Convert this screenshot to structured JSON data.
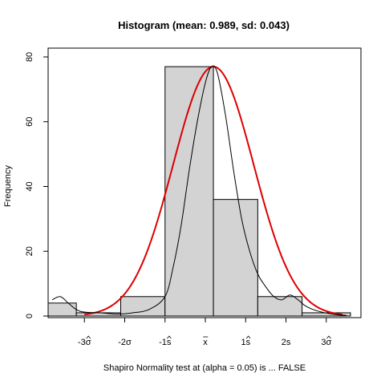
{
  "chart_data": {
    "type": "bar",
    "title": "Histogram (mean: 0.989, sd: 0.043)",
    "xlabel": "Shapiro Normality test at (alpha = 0.05) is ... FALSE",
    "ylabel": "Frequency",
    "ylim": [
      0,
      80
    ],
    "xlim": [
      -3.9,
      3.8
    ],
    "y_ticks": [
      0,
      20,
      40,
      60,
      80
    ],
    "x_ticks": [
      {
        "pos": -3,
        "base": "-3",
        "symbol": "σ",
        "hat": true
      },
      {
        "pos": -2,
        "base": "-2",
        "symbol": "σ",
        "hat": false
      },
      {
        "pos": -1,
        "base": "-1",
        "symbol": "s",
        "hat": true
      },
      {
        "pos": 0,
        "base": "",
        "symbol": "x",
        "bar": true
      },
      {
        "pos": 1,
        "base": "1",
        "symbol": "s",
        "hat": true
      },
      {
        "pos": 2,
        "base": "2",
        "symbol": "s",
        "hat": false
      },
      {
        "pos": 3,
        "base": "3",
        "symbol": "σ",
        "hat": true
      }
    ],
    "bins": [
      {
        "start": -3.9,
        "end": -3.2,
        "count": 4
      },
      {
        "start": -3.2,
        "end": -2.1,
        "count": 1
      },
      {
        "start": -2.1,
        "end": -1.0,
        "count": 6
      },
      {
        "start": -1.0,
        "end": 0.2,
        "count": 77
      },
      {
        "start": 0.2,
        "end": 1.3,
        "count": 36
      },
      {
        "start": 1.3,
        "end": 2.4,
        "count": 6
      },
      {
        "start": 2.4,
        "end": 3.6,
        "count": 1
      }
    ],
    "normal_curve": {
      "color": "#dd0000",
      "mean": 0.2,
      "sd": 1.0,
      "peak": 77
    },
    "density_curve": {
      "color": "#000000",
      "points": [
        [
          -3.8,
          5
        ],
        [
          -3.6,
          6
        ],
        [
          -3.4,
          4
        ],
        [
          -3.2,
          2
        ],
        [
          -3.0,
          1.2
        ],
        [
          -2.6,
          1
        ],
        [
          -2.2,
          0.6
        ],
        [
          -1.8,
          1
        ],
        [
          -1.4,
          2
        ],
        [
          -1.0,
          6
        ],
        [
          -0.8,
          15
        ],
        [
          -0.6,
          28
        ],
        [
          -0.4,
          45
        ],
        [
          -0.2,
          60
        ],
        [
          0.0,
          72
        ],
        [
          0.15,
          77
        ],
        [
          0.3,
          75
        ],
        [
          0.5,
          62
        ],
        [
          0.7,
          45
        ],
        [
          0.9,
          30
        ],
        [
          1.1,
          20
        ],
        [
          1.3,
          13
        ],
        [
          1.5,
          9
        ],
        [
          1.7,
          6
        ],
        [
          1.9,
          5
        ],
        [
          2.1,
          6.5
        ],
        [
          2.3,
          5
        ],
        [
          2.5,
          3
        ],
        [
          2.8,
          1.5
        ],
        [
          3.2,
          0.5
        ],
        [
          3.5,
          0.2
        ]
      ]
    }
  }
}
